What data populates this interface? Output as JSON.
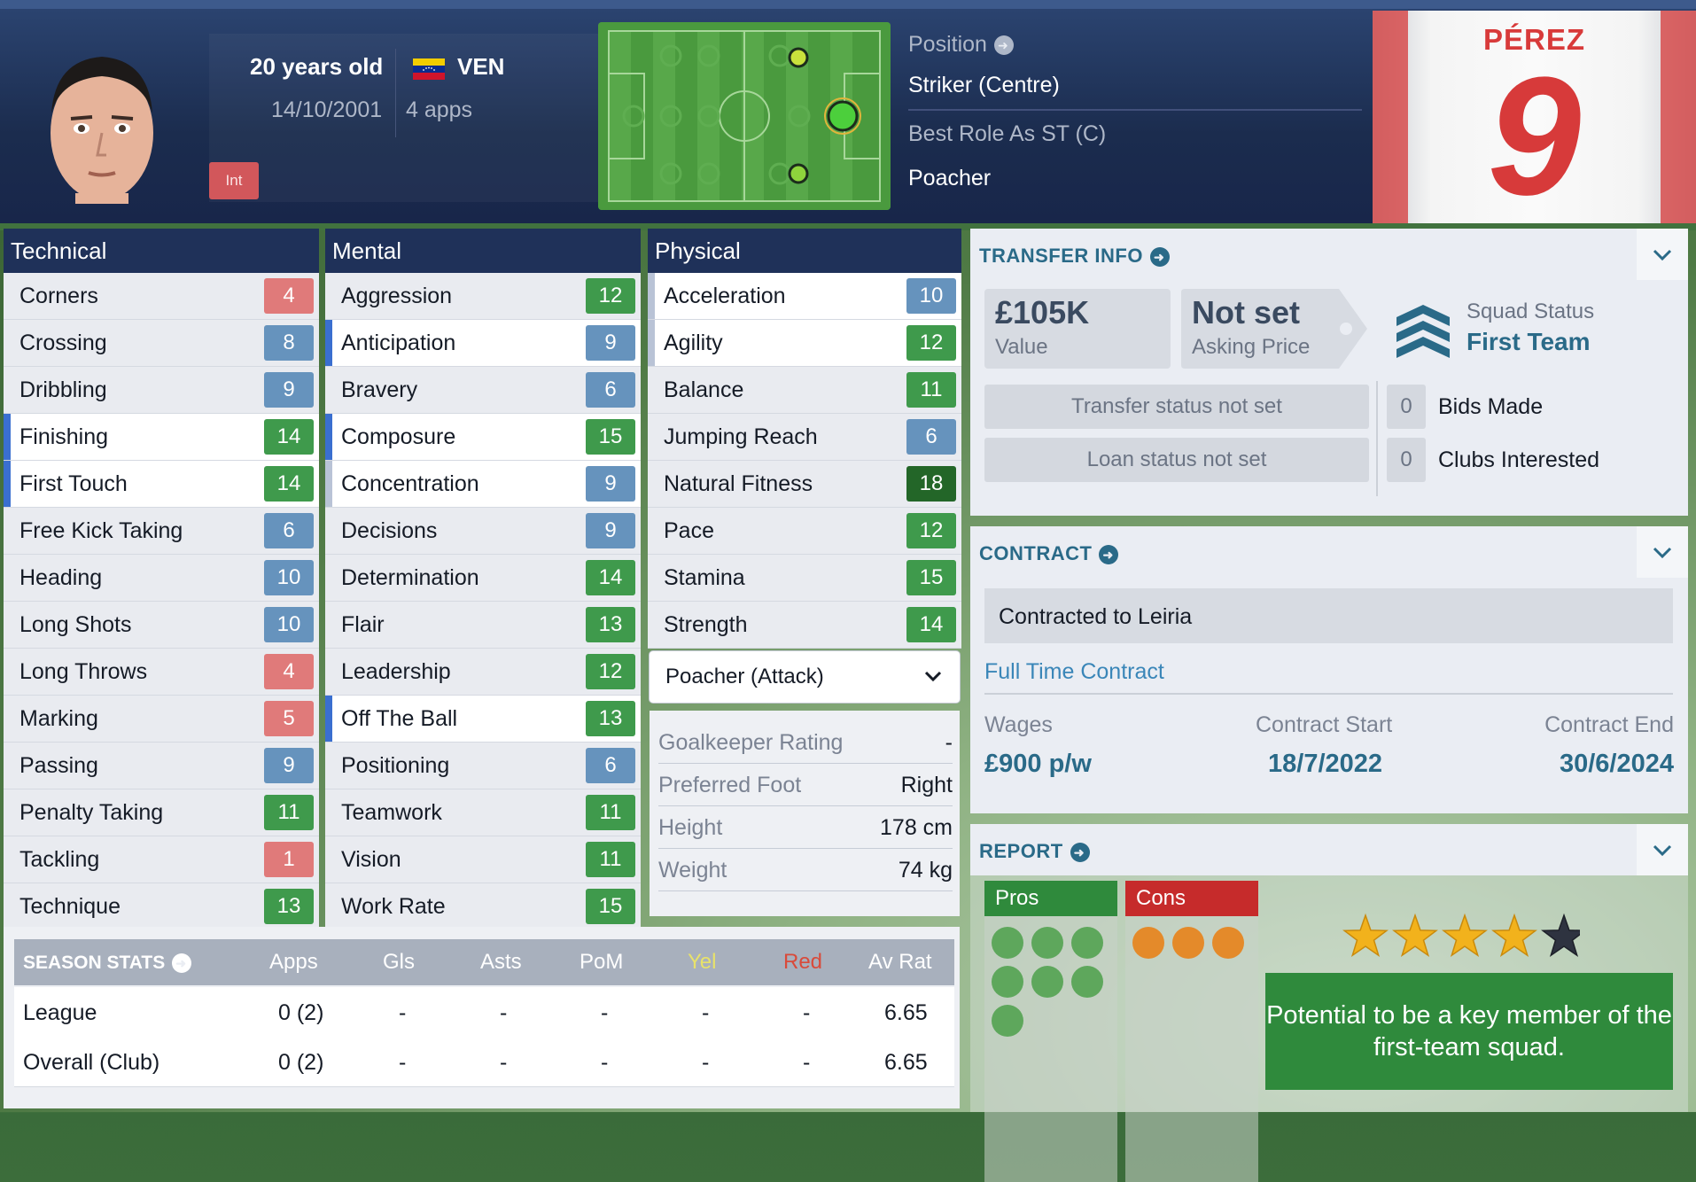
{
  "header": {
    "age": "20 years old",
    "dob": "14/10/2001",
    "nationality": "VEN",
    "apps": "4 apps",
    "int_badge": "Int",
    "position_label": "Position",
    "position_value": "Striker (Centre)",
    "best_role_label": "Best Role As ST (C)",
    "best_role_value": "Poacher",
    "shirt_name": "PÉREZ",
    "shirt_number": "9"
  },
  "technical": {
    "title": "Technical",
    "attrs": [
      {
        "name": "Corners",
        "value": "4"
      },
      {
        "name": "Crossing",
        "value": "8"
      },
      {
        "name": "Dribbling",
        "value": "9"
      },
      {
        "name": "Finishing",
        "value": "14"
      },
      {
        "name": "First Touch",
        "value": "14"
      },
      {
        "name": "Free Kick Taking",
        "value": "6"
      },
      {
        "name": "Heading",
        "value": "10"
      },
      {
        "name": "Long Shots",
        "value": "10"
      },
      {
        "name": "Long Throws",
        "value": "4"
      },
      {
        "name": "Marking",
        "value": "5"
      },
      {
        "name": "Passing",
        "value": "9"
      },
      {
        "name": "Penalty Taking",
        "value": "11"
      },
      {
        "name": "Tackling",
        "value": "1"
      },
      {
        "name": "Technique",
        "value": "13"
      }
    ]
  },
  "mental": {
    "title": "Mental",
    "attrs": [
      {
        "name": "Aggression",
        "value": "12"
      },
      {
        "name": "Anticipation",
        "value": "9"
      },
      {
        "name": "Bravery",
        "value": "6"
      },
      {
        "name": "Composure",
        "value": "15"
      },
      {
        "name": "Concentration",
        "value": "9"
      },
      {
        "name": "Decisions",
        "value": "9"
      },
      {
        "name": "Determination",
        "value": "14"
      },
      {
        "name": "Flair",
        "value": "13"
      },
      {
        "name": "Leadership",
        "value": "12"
      },
      {
        "name": "Off The Ball",
        "value": "13"
      },
      {
        "name": "Positioning",
        "value": "6"
      },
      {
        "name": "Teamwork",
        "value": "11"
      },
      {
        "name": "Vision",
        "value": "11"
      },
      {
        "name": "Work Rate",
        "value": "15"
      }
    ]
  },
  "physical": {
    "title": "Physical",
    "attrs": [
      {
        "name": "Acceleration",
        "value": "10"
      },
      {
        "name": "Agility",
        "value": "12"
      },
      {
        "name": "Balance",
        "value": "11"
      },
      {
        "name": "Jumping Reach",
        "value": "6"
      },
      {
        "name": "Natural Fitness",
        "value": "18"
      },
      {
        "name": "Pace",
        "value": "12"
      },
      {
        "name": "Stamina",
        "value": "15"
      },
      {
        "name": "Strength",
        "value": "14"
      }
    ],
    "role_select": "Poacher (Attack)",
    "bio": [
      {
        "k": "Goalkeeper Rating",
        "v": "-"
      },
      {
        "k": "Preferred Foot",
        "v": "Right"
      },
      {
        "k": "Height",
        "v": "178 cm"
      },
      {
        "k": "Weight",
        "v": "74 kg"
      }
    ]
  },
  "transfer": {
    "title": "TRANSFER INFO",
    "value": "£105K",
    "value_label": "Value",
    "asking": "Not set",
    "asking_label": "Asking Price",
    "squad_status_label": "Squad Status",
    "squad_status": "First Team",
    "transfer_status": "Transfer status not set",
    "loan_status": "Loan status not set",
    "bids_count": "0",
    "bids_label": "Bids Made",
    "clubs_count": "0",
    "clubs_label": "Clubs Interested"
  },
  "contract": {
    "title": "CONTRACT",
    "contracted_to": "Contracted to Leiria",
    "type": "Full Time Contract",
    "wages_label": "Wages",
    "wages": "£900 p/w",
    "start_label": "Contract Start",
    "start": "18/7/2022",
    "end_label": "Contract End",
    "end": "30/6/2024"
  },
  "report": {
    "title": "REPORT",
    "pros_label": "Pros",
    "cons_label": "Cons",
    "stars": 4,
    "stars_max": 5,
    "text": "Potential to be a key member of the first-team squad."
  },
  "season_stats": {
    "title": "SEASON STATS",
    "columns": [
      "Apps",
      "Gls",
      "Asts",
      "PoM",
      "Yel",
      "Red",
      "Av Rat"
    ],
    "rows": [
      {
        "label": "League",
        "cells": [
          "0 (2)",
          "-",
          "-",
          "-",
          "-",
          "-",
          "6.65"
        ]
      },
      {
        "label": "Overall (Club)",
        "cells": [
          "0 (2)",
          "-",
          "-",
          "-",
          "-",
          "-",
          "6.65"
        ]
      }
    ]
  },
  "colors": {
    "header_bg": "#1b2c4e",
    "accent": "#2a6a88",
    "attr_green": "#3f9a4c",
    "attr_blue": "#6693bd",
    "attr_red": "#e07a7a",
    "pros": "#2f8a3c",
    "cons": "#c62b2b",
    "yel": "#e8e26a",
    "red": "#d94a3a"
  }
}
